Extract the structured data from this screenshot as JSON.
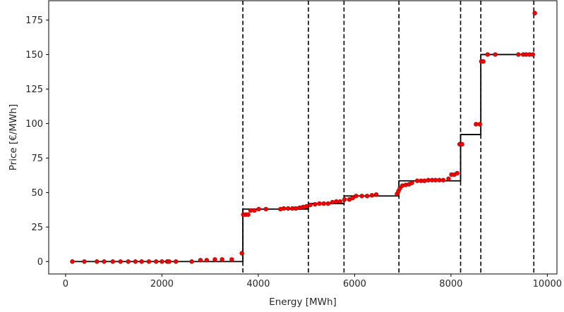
{
  "chart_data": {
    "type": "scatter",
    "title": "",
    "xlabel": "Energy [MWh]",
    "ylabel": "Price [€/MWh]",
    "xlim": [
      -350,
      10200
    ],
    "ylim": [
      -9,
      189
    ],
    "xticks": [
      {
        "value": 0,
        "label": "0"
      },
      {
        "value": 2000,
        "label": "2000"
      },
      {
        "value": 4000,
        "label": "4000"
      },
      {
        "value": 6000,
        "label": "6000"
      },
      {
        "value": 8000,
        "label": "8000"
      },
      {
        "value": 10000,
        "label": "10000"
      }
    ],
    "yticks": [
      {
        "value": 0,
        "label": "0"
      },
      {
        "value": 25,
        "label": "25"
      },
      {
        "value": 50,
        "label": "50"
      },
      {
        "value": 75,
        "label": "75"
      },
      {
        "value": 100,
        "label": "100"
      },
      {
        "value": 125,
        "label": "125"
      },
      {
        "value": 150,
        "label": "150"
      },
      {
        "value": 175,
        "label": "175"
      }
    ],
    "grid": false,
    "colors": {
      "points": "#ff0000",
      "point_edge": "#8b0000",
      "step_line": "#000000",
      "breakpoints": "#000000"
    },
    "breakpoints": [
      3680,
      5040,
      5780,
      6920,
      8200,
      8620,
      9720
    ],
    "step_function": [
      {
        "x_start": 130,
        "x_end": 3680,
        "y": 0
      },
      {
        "x_start": 3680,
        "x_end": 5040,
        "y": 38
      },
      {
        "x_start": 5040,
        "x_end": 5780,
        "y": 42
      },
      {
        "x_start": 5780,
        "x_end": 6920,
        "y": 47.5
      },
      {
        "x_start": 6920,
        "x_end": 8200,
        "y": 58.5
      },
      {
        "x_start": 8200,
        "x_end": 8620,
        "y": 92
      },
      {
        "x_start": 8620,
        "x_end": 9720,
        "y": 150
      }
    ],
    "points": [
      [
        140,
        0
      ],
      [
        390,
        0
      ],
      [
        650,
        0
      ],
      [
        800,
        0
      ],
      [
        980,
        0
      ],
      [
        1140,
        0
      ],
      [
        1300,
        0
      ],
      [
        1450,
        0
      ],
      [
        1580,
        0
      ],
      [
        1730,
        0
      ],
      [
        1880,
        0
      ],
      [
        2000,
        0
      ],
      [
        2110,
        0
      ],
      [
        2150,
        0
      ],
      [
        2290,
        0
      ],
      [
        2620,
        0
      ],
      [
        2800,
        1
      ],
      [
        2930,
        1
      ],
      [
        3100,
        1.5
      ],
      [
        3250,
        1.5
      ],
      [
        3450,
        1.5
      ],
      [
        3660,
        6
      ],
      [
        3690,
        34
      ],
      [
        3740,
        34
      ],
      [
        3790,
        34
      ],
      [
        3840,
        37
      ],
      [
        3920,
        37
      ],
      [
        4010,
        38
      ],
      [
        4160,
        38
      ],
      [
        4460,
        38
      ],
      [
        4530,
        38.5
      ],
      [
        4620,
        38.5
      ],
      [
        4710,
        38.5
      ],
      [
        4780,
        38.5
      ],
      [
        4860,
        39
      ],
      [
        4930,
        39.5
      ],
      [
        5000,
        40
      ],
      [
        5080,
        41
      ],
      [
        5180,
        41.5
      ],
      [
        5270,
        42
      ],
      [
        5360,
        42
      ],
      [
        5450,
        42
      ],
      [
        5540,
        43
      ],
      [
        5620,
        43.5
      ],
      [
        5700,
        43.5
      ],
      [
        5790,
        45
      ],
      [
        5890,
        45
      ],
      [
        5960,
        46
      ],
      [
        6030,
        47.5
      ],
      [
        6150,
        47.5
      ],
      [
        6260,
        47.5
      ],
      [
        6360,
        48
      ],
      [
        6450,
        48.5
      ],
      [
        6880,
        49
      ],
      [
        6910,
        51
      ],
      [
        6940,
        53
      ],
      [
        6990,
        55
      ],
      [
        7060,
        55.5
      ],
      [
        7130,
        56
      ],
      [
        7190,
        57
      ],
      [
        7300,
        58.5
      ],
      [
        7380,
        58.5
      ],
      [
        7450,
        58.5
      ],
      [
        7530,
        59
      ],
      [
        7610,
        59
      ],
      [
        7680,
        59
      ],
      [
        7760,
        59
      ],
      [
        7840,
        59
      ],
      [
        7950,
        60
      ],
      [
        8010,
        63
      ],
      [
        8070,
        63
      ],
      [
        8130,
        64
      ],
      [
        8180,
        85
      ],
      [
        8230,
        85
      ],
      [
        8520,
        99.5
      ],
      [
        8600,
        99.5
      ],
      [
        8630,
        145
      ],
      [
        8670,
        145
      ],
      [
        8760,
        150
      ],
      [
        8920,
        150
      ],
      [
        9400,
        150
      ],
      [
        9500,
        150
      ],
      [
        9560,
        150
      ],
      [
        9630,
        150
      ],
      [
        9700,
        150
      ],
      [
        9740,
        180
      ]
    ]
  }
}
